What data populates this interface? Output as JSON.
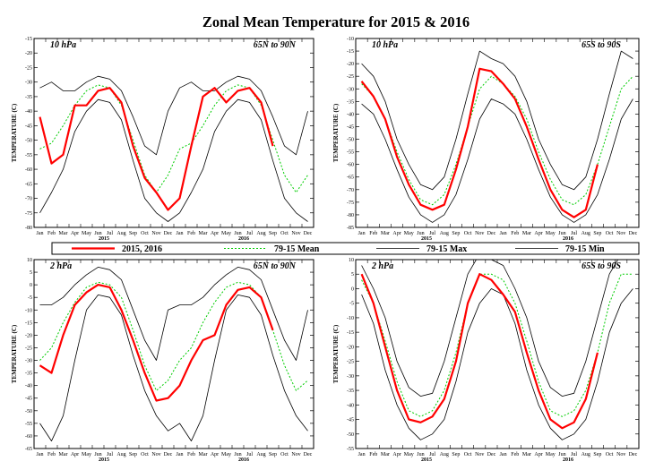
{
  "title": "Zonal Mean Temperature for 2015 & 2016",
  "colors": {
    "actual": "#ff0000",
    "mean": "#00cc00",
    "max": "#000000",
    "min": "#000000"
  },
  "legend": {
    "items": [
      {
        "label": "2015, 2016",
        "style": "actual"
      },
      {
        "label": "79-15 Mean",
        "style": "mean"
      },
      {
        "label": "79-15 Max",
        "style": "max"
      },
      {
        "label": "79-15 Min",
        "style": "min"
      }
    ]
  },
  "chart_data": [
    {
      "type": "line",
      "pressure": "10 hPa",
      "region": "65N to 90N",
      "ylabel": "TEMPERATURE (C)",
      "ylim": [
        -80,
        -15
      ],
      "yticks": [
        -80,
        -75,
        -70,
        -65,
        -60,
        -55,
        -50,
        -45,
        -40,
        -35,
        -30,
        -25,
        -20,
        -15
      ],
      "month_labels": [
        "Jan",
        "Feb",
        "Mar",
        "Apr",
        "May",
        "Jun",
        "Jul",
        "Aug",
        "Sep",
        "Oct",
        "Nov",
        "Dec",
        "Jan",
        "Feb",
        "Mar",
        "Apr",
        "May",
        "Jun",
        "Jul",
        "Aug",
        "Sep",
        "Oct",
        "Nov",
        "Dec"
      ],
      "year_labels": [
        "2015",
        "2016"
      ],
      "climatology": {
        "mean": [
          -53,
          -51,
          -45,
          -38,
          -33,
          -31,
          -32,
          -38,
          -50,
          -62,
          -68,
          -62
        ],
        "max": [
          -32,
          -30,
          -33,
          -33,
          -30,
          -28,
          -29,
          -33,
          -42,
          -52,
          -55,
          -40
        ],
        "min": [
          -75,
          -68,
          -60,
          -47,
          -40,
          -36,
          -37,
          -43,
          -57,
          -70,
          -75,
          -78
        ]
      },
      "actual": [
        -42,
        -58,
        -55,
        -38,
        -38,
        -33,
        -32,
        -37,
        -52,
        -63,
        -68,
        -74,
        -70,
        -52,
        -35,
        -32,
        -37,
        -33,
        -32,
        -37,
        -52,
        null,
        null,
        null
      ]
    },
    {
      "type": "line",
      "pressure": "10 hPa",
      "region": "65S to 90S",
      "ylabel": "TEMPERATURE (C)",
      "ylim": [
        -85,
        -10
      ],
      "yticks": [
        -85,
        -80,
        -75,
        -70,
        -65,
        -60,
        -55,
        -50,
        -45,
        -40,
        -35,
        -30,
        -25,
        -20,
        -15,
        -10
      ],
      "month_labels": [
        "Jan",
        "Feb",
        "Mar",
        "Apr",
        "May",
        "Jun",
        "Jul",
        "Aug",
        "Sep",
        "Oct",
        "Nov",
        "Dec",
        "Jan",
        "Feb",
        "Mar",
        "Apr",
        "May",
        "Jun",
        "Jul",
        "Aug",
        "Sep",
        "Oct",
        "Nov",
        "Dec"
      ],
      "year_labels": [
        "2015",
        "2016"
      ],
      "climatology": {
        "mean": [
          -28,
          -33,
          -42,
          -55,
          -66,
          -74,
          -76,
          -72,
          -60,
          -45,
          -30,
          -25
        ],
        "max": [
          -20,
          -25,
          -35,
          -50,
          -60,
          -68,
          -70,
          -65,
          -50,
          -32,
          -15,
          -18
        ],
        "min": [
          -36,
          -40,
          -50,
          -62,
          -73,
          -80,
          -83,
          -80,
          -72,
          -58,
          -42,
          -34
        ]
      },
      "actual": [
        -27,
        -33,
        -42,
        -57,
        -68,
        -76,
        -78,
        -76,
        -62,
        -45,
        -22,
        -23,
        -28,
        -34,
        -45,
        -58,
        -70,
        -78,
        -81,
        -78,
        -60,
        null,
        null,
        null
      ]
    },
    {
      "type": "line",
      "pressure": "2 hPa",
      "region": "65N to 90N",
      "ylabel": "TEMPERATURE (C)",
      "ylim": [
        -65,
        10
      ],
      "yticks": [
        -65,
        -60,
        -55,
        -50,
        -45,
        -40,
        -35,
        -30,
        -25,
        -20,
        -15,
        -10,
        -5,
        0,
        5,
        10
      ],
      "month_labels": [
        "Jan",
        "Feb",
        "Mar",
        "Apr",
        "May",
        "Jun",
        "Jul",
        "Aug",
        "Sep",
        "Oct",
        "Nov",
        "Dec",
        "Jan",
        "Feb",
        "Mar",
        "Apr",
        "May",
        "Jun",
        "Jul",
        "Aug",
        "Sep",
        "Oct",
        "Nov",
        "Dec"
      ],
      "year_labels": [
        "2015",
        "2016"
      ],
      "climatology": {
        "mean": [
          -30,
          -25,
          -15,
          -7,
          -1,
          1,
          0,
          -5,
          -18,
          -32,
          -42,
          -38
        ],
        "max": [
          -8,
          -8,
          -5,
          0,
          4,
          7,
          6,
          2,
          -10,
          -22,
          -30,
          -10
        ],
        "min": [
          -55,
          -62,
          -52,
          -30,
          -10,
          -4,
          -5,
          -12,
          -28,
          -42,
          -52,
          -58
        ]
      },
      "actual": [
        -32,
        -35,
        -20,
        -8,
        -3,
        0,
        -1,
        -10,
        -22,
        -35,
        -46,
        -45,
        -40,
        -30,
        -22,
        -20,
        -8,
        -2,
        -1,
        -5,
        -18,
        null,
        null,
        null
      ]
    },
    {
      "type": "line",
      "pressure": "2 hPa",
      "region": "65S to 90S",
      "ylabel": "TEMPERATURE (C)",
      "ylim": [
        -55,
        10
      ],
      "yticks": [
        -55,
        -50,
        -45,
        -40,
        -35,
        -30,
        -25,
        -20,
        -15,
        -10,
        -5,
        0,
        5,
        10
      ],
      "month_labels": [
        "Jan",
        "Feb",
        "Mar",
        "Apr",
        "May",
        "Jun",
        "Jul",
        "Aug",
        "Sep",
        "Oct",
        "Nov",
        "Dec",
        "Jan",
        "Feb",
        "Mar",
        "Apr",
        "May",
        "Jun",
        "Jul",
        "Aug",
        "Sep",
        "Oct",
        "Nov",
        "Dec"
      ],
      "year_labels": [
        "2015",
        "2016"
      ],
      "climatology": {
        "mean": [
          3,
          -5,
          -18,
          -32,
          -42,
          -44,
          -42,
          -35,
          -22,
          -5,
          5,
          5
        ],
        "max": [
          8,
          0,
          -10,
          -25,
          -34,
          -37,
          -36,
          -25,
          -10,
          5,
          12,
          10
        ],
        "min": [
          -2,
          -12,
          -28,
          -40,
          -48,
          -52,
          -50,
          -45,
          -32,
          -15,
          -5,
          0
        ]
      },
      "actual": [
        5,
        -5,
        -20,
        -35,
        -45,
        -46,
        -44,
        -38,
        -25,
        -5,
        5,
        3,
        -2,
        -8,
        -22,
        -35,
        -45,
        -48,
        -46,
        -38,
        -22,
        null,
        null,
        null
      ]
    }
  ]
}
